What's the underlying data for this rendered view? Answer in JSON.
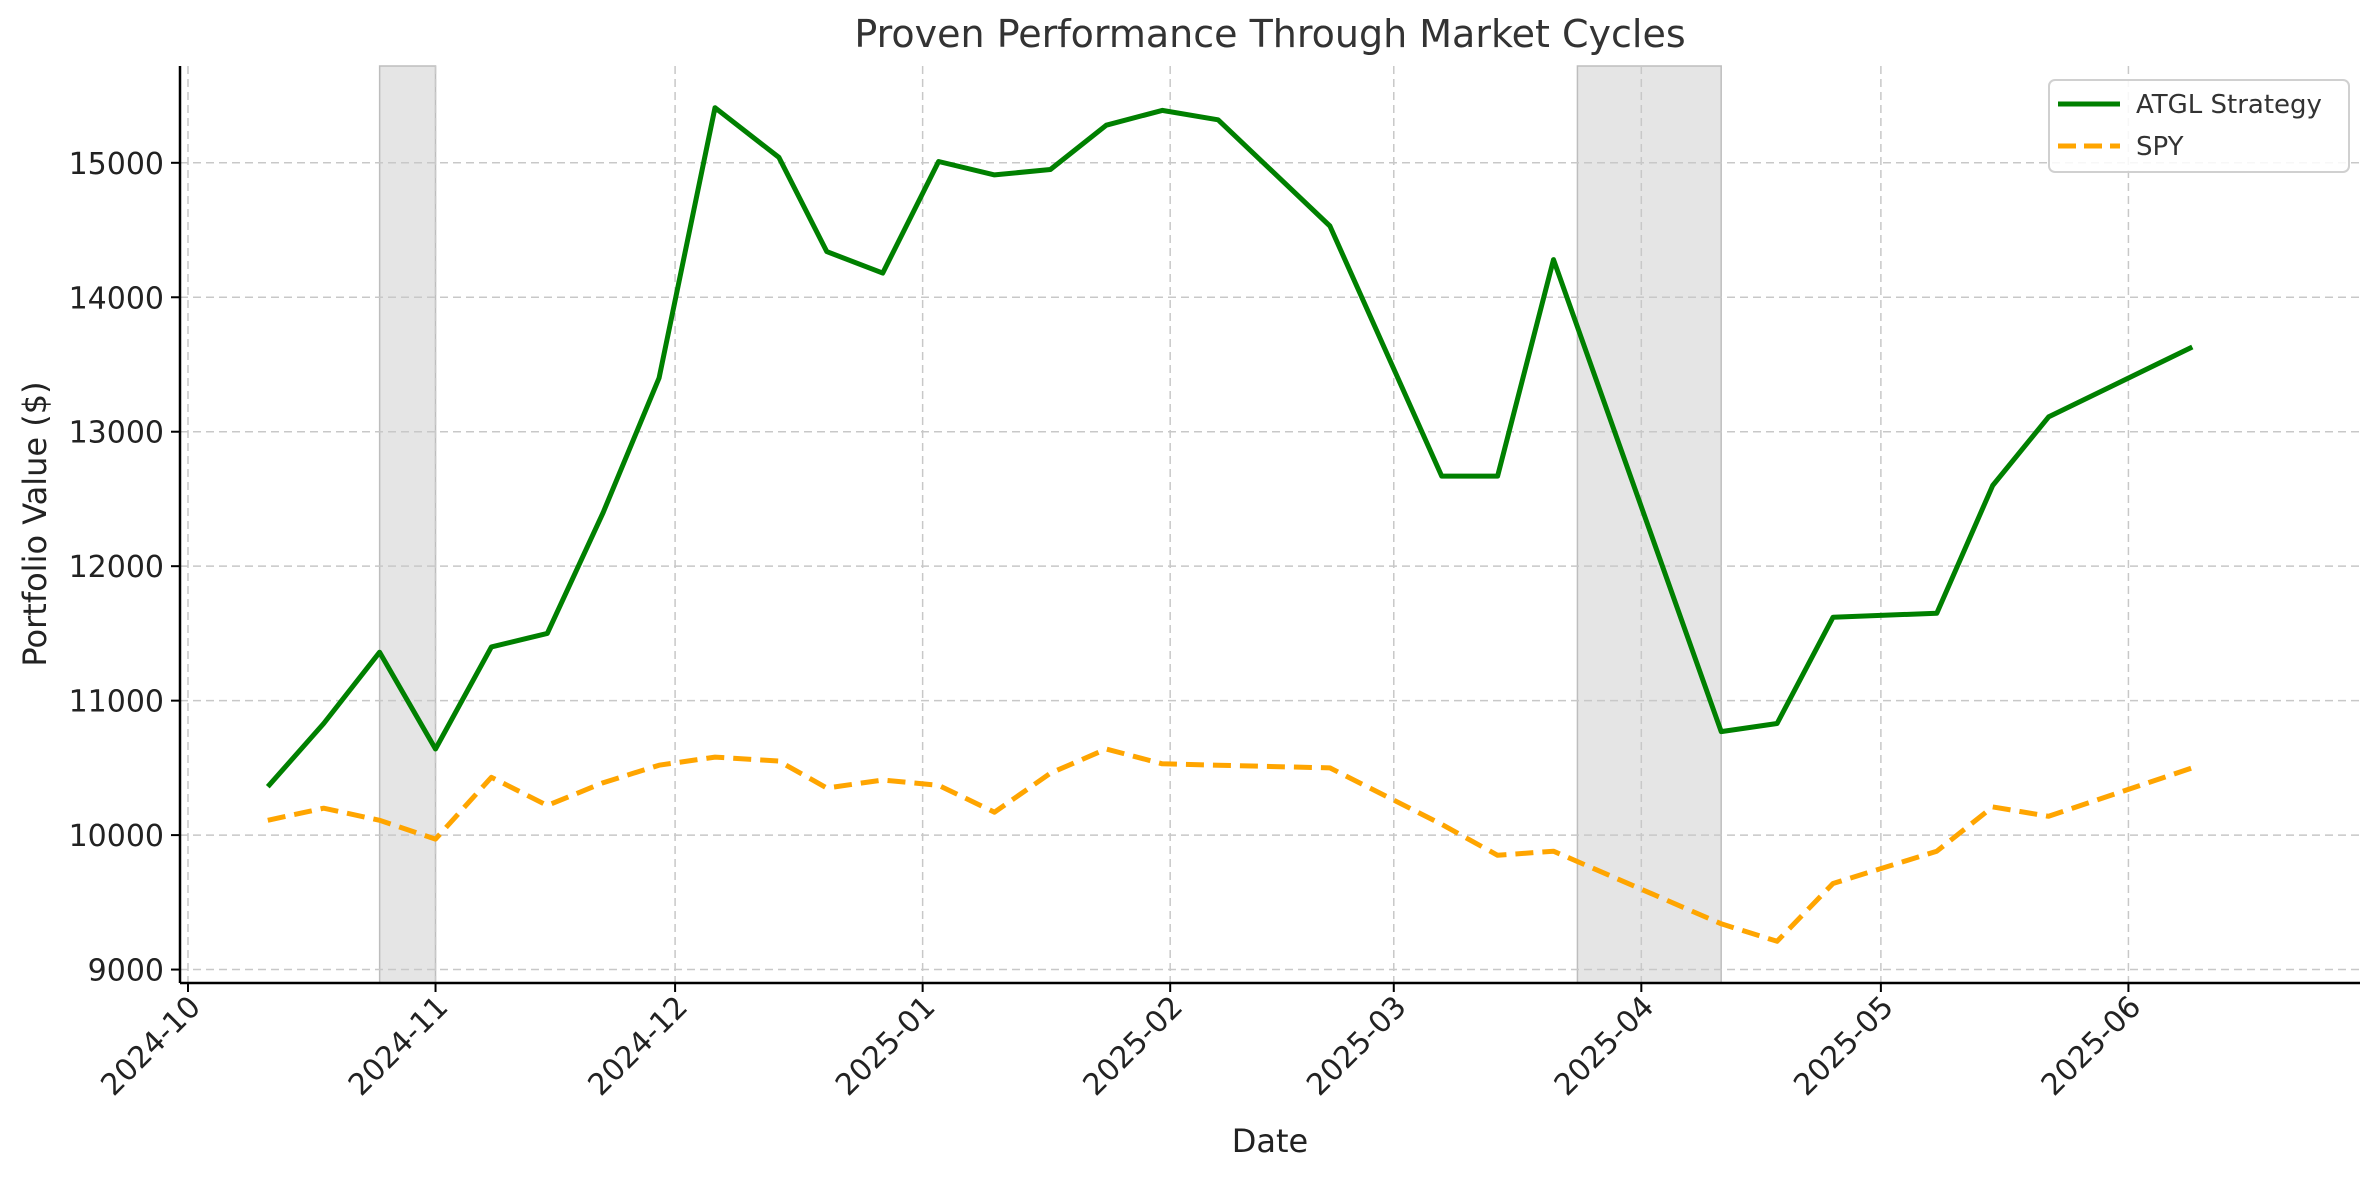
{
  "chart_data": {
    "type": "line",
    "title": "Proven Performance Through Market Cycles",
    "xlabel": "Date",
    "ylabel": "Portfolio Value ($)",
    "xlim": [
      "2024-09-30",
      "2025-06-30"
    ],
    "ylim": [
      8900,
      15720
    ],
    "x_ticks": [
      "2024-10",
      "2024-11",
      "2024-12",
      "2025-01",
      "2025-02",
      "2025-03",
      "2025-04",
      "2025-05",
      "2025-06"
    ],
    "x_tick_dates": [
      "2024-10-01",
      "2024-11-01",
      "2024-12-01",
      "2025-01-01",
      "2025-02-01",
      "2025-03-01",
      "2025-04-01",
      "2025-05-01",
      "2025-06-01"
    ],
    "y_ticks": [
      9000,
      10000,
      11000,
      12000,
      13000,
      14000,
      15000
    ],
    "grid": true,
    "legend_position": "top-right",
    "shaded_periods": [
      {
        "start": "2024-10-25",
        "end": "2024-11-01"
      },
      {
        "start": "2025-03-24",
        "end": "2025-04-11"
      }
    ],
    "shade_color": "#e5e5e5",
    "series": [
      {
        "name": "ATGL Strategy",
        "color": "#008000",
        "style": "solid",
        "points": [
          [
            "2024-10-11",
            10360
          ],
          [
            "2024-10-18",
            10830
          ],
          [
            "2024-10-25",
            11360
          ],
          [
            "2024-11-01",
            10640
          ],
          [
            "2024-11-08",
            11400
          ],
          [
            "2024-11-15",
            11500
          ],
          [
            "2024-11-22",
            12400
          ],
          [
            "2024-11-29",
            13400
          ],
          [
            "2024-12-06",
            15410
          ],
          [
            "2024-12-14",
            15040
          ],
          [
            "2024-12-20",
            14340
          ],
          [
            "2024-12-27",
            14180
          ],
          [
            "2025-01-03",
            15010
          ],
          [
            "2025-01-10",
            14910
          ],
          [
            "2025-01-17",
            14950
          ],
          [
            "2025-01-24",
            15280
          ],
          [
            "2025-01-31",
            15390
          ],
          [
            "2025-02-07",
            15320
          ],
          [
            "2025-02-21",
            14530
          ],
          [
            "2025-03-07",
            12670
          ],
          [
            "2025-03-14",
            12670
          ],
          [
            "2025-03-21",
            14280
          ],
          [
            "2025-04-11",
            10770
          ],
          [
            "2025-04-18",
            10830
          ],
          [
            "2025-04-25",
            11620
          ],
          [
            "2025-05-08",
            11650
          ],
          [
            "2025-05-15",
            12600
          ],
          [
            "2025-05-22",
            13110
          ],
          [
            "2025-06-09",
            13630
          ]
        ]
      },
      {
        "name": "SPY",
        "color": "#ffa500",
        "style": "dashed",
        "points": [
          [
            "2024-10-11",
            10110
          ],
          [
            "2024-10-18",
            10200
          ],
          [
            "2024-10-25",
            10110
          ],
          [
            "2024-11-01",
            9970
          ],
          [
            "2024-11-08",
            10430
          ],
          [
            "2024-11-15",
            10220
          ],
          [
            "2024-11-22",
            10390
          ],
          [
            "2024-11-29",
            10520
          ],
          [
            "2024-12-06",
            10580
          ],
          [
            "2024-12-14",
            10550
          ],
          [
            "2024-12-20",
            10350
          ],
          [
            "2024-12-27",
            10410
          ],
          [
            "2025-01-03",
            10370
          ],
          [
            "2025-01-10",
            10170
          ],
          [
            "2025-01-17",
            10460
          ],
          [
            "2025-01-24",
            10640
          ],
          [
            "2025-01-31",
            10530
          ],
          [
            "2025-02-07",
            10520
          ],
          [
            "2025-02-21",
            10500
          ],
          [
            "2025-03-07",
            10080
          ],
          [
            "2025-03-14",
            9850
          ],
          [
            "2025-03-21",
            9880
          ],
          [
            "2025-04-11",
            9340
          ],
          [
            "2025-04-18",
            9210
          ],
          [
            "2025-04-25",
            9640
          ],
          [
            "2025-05-08",
            9880
          ],
          [
            "2025-05-15",
            10210
          ],
          [
            "2025-05-22",
            10140
          ],
          [
            "2025-06-09",
            10500
          ]
        ]
      }
    ]
  }
}
